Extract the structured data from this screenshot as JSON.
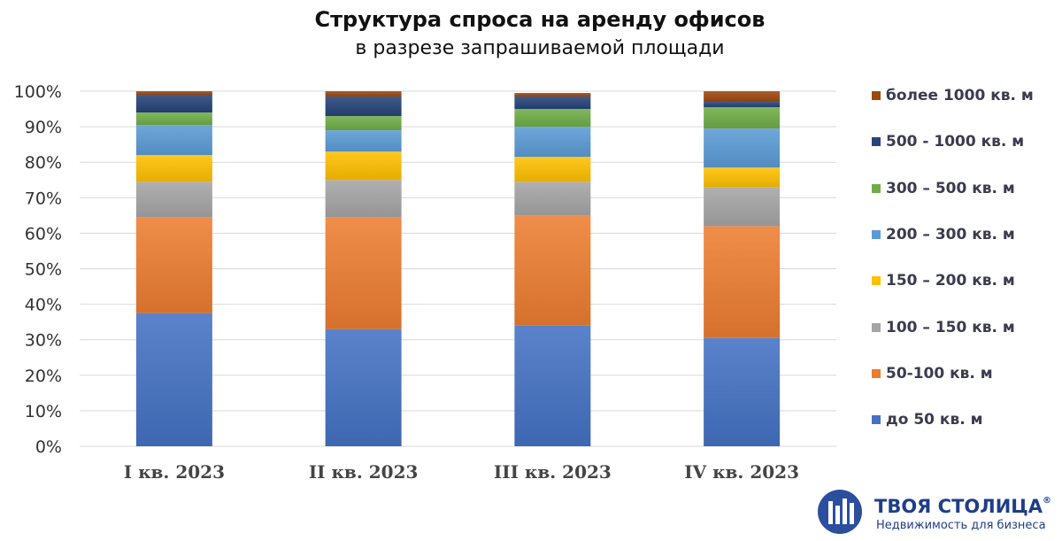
{
  "chart_data": {
    "type": "bar",
    "stacked": true,
    "title": "Структура спроса на аренду офисов",
    "subtitle": "в разрезе запрашиваемой площади",
    "categories": [
      "I кв. 2023",
      "II кв. 2023",
      "III кв. 2023",
      "IV кв. 2023"
    ],
    "ylim": [
      0,
      100
    ],
    "yticks": [
      "0%",
      "10%",
      "20%",
      "30%",
      "40%",
      "50%",
      "60%",
      "70%",
      "80%",
      "90%",
      "100%"
    ],
    "grid": true,
    "legend_position": "right",
    "series": [
      {
        "name": "до 50 кв. м",
        "color": "#4472c4",
        "values": [
          37.5,
          33,
          34,
          30.5
        ]
      },
      {
        "name": "50-100 кв. м",
        "color": "#ed7d31",
        "values": [
          27,
          31.5,
          31,
          31.5
        ]
      },
      {
        "name": "100 – 150 кв. м",
        "color": "#a5a5a5",
        "values": [
          10,
          10.5,
          9.5,
          11
        ]
      },
      {
        "name": "150 – 200 кв. м",
        "color": "#ffc000",
        "values": [
          7.5,
          8,
          7,
          5.5
        ]
      },
      {
        "name": "200 – 300 кв. м",
        "color": "#5b9bd5",
        "values": [
          8.5,
          6,
          8.5,
          11
        ]
      },
      {
        "name": "300 – 500 кв. м",
        "color": "#70ad47",
        "values": [
          3.5,
          4,
          5,
          6
        ]
      },
      {
        "name": "500 - 1000 кв. м",
        "color": "#264478",
        "values": [
          5,
          5.5,
          3.5,
          1.5
        ]
      },
      {
        "name": "более 1000 кв. м",
        "color": "#9e480e",
        "values": [
          1,
          1.5,
          1,
          3
        ]
      }
    ]
  },
  "brand": {
    "name": "ТВОЯ СТОЛИЦА",
    "registered": "®",
    "tagline": "Недвижимость для бизнеса",
    "color": "#1f3d8a"
  }
}
